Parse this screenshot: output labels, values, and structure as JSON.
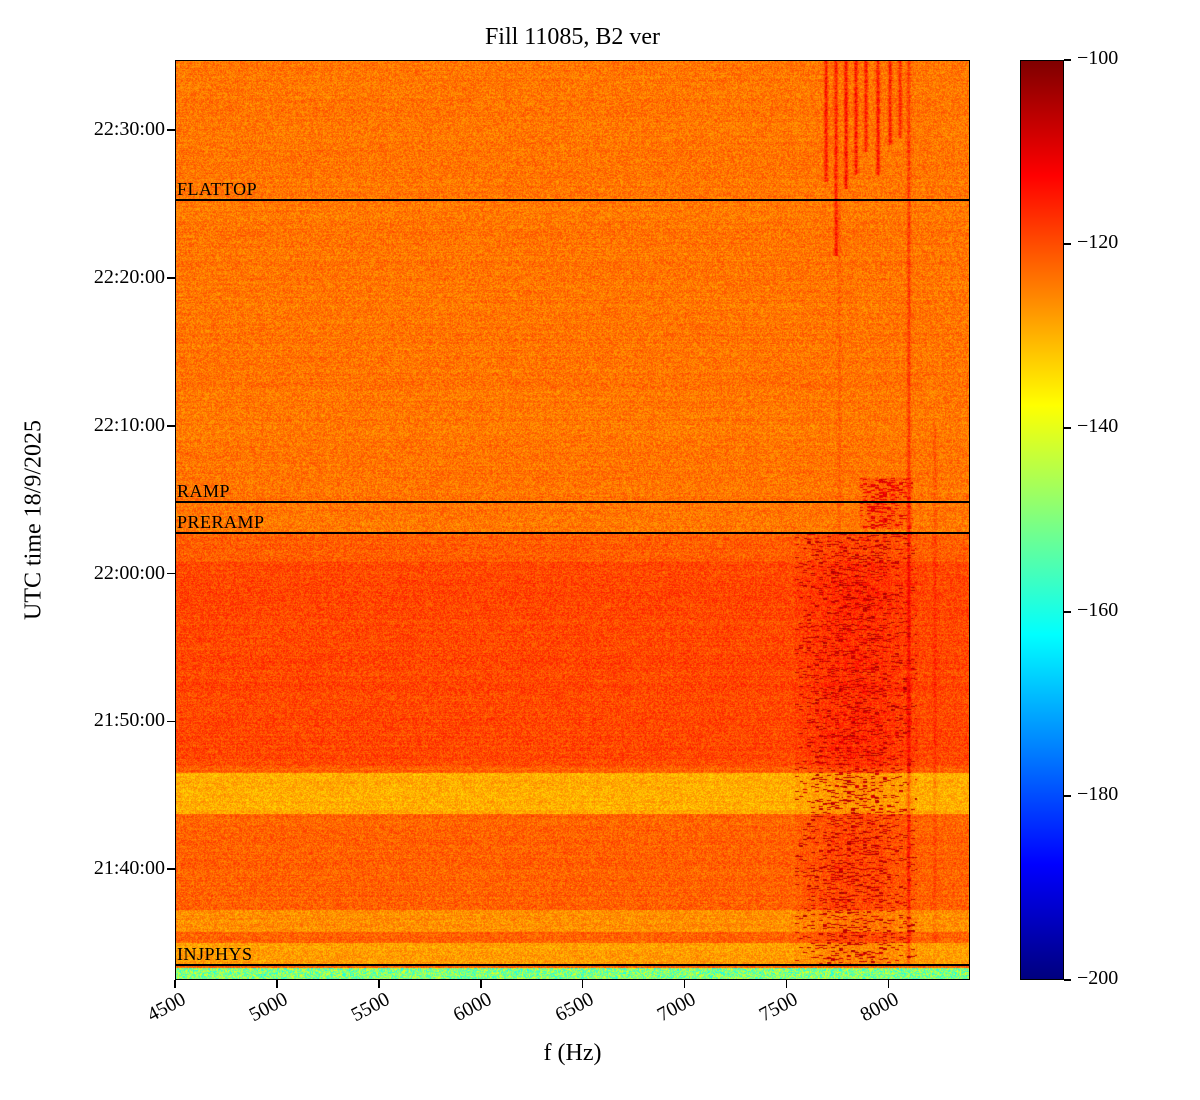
{
  "chart_data": {
    "type": "heatmap",
    "variant": "spectrogram",
    "title": "Fill 11085, B2 ver",
    "xlabel": "f (Hz)",
    "ylabel": "UTC time 18/9/2025",
    "x_range_hz": [
      4500,
      8400
    ],
    "x_ticks_hz": [
      4500,
      5000,
      5500,
      6000,
      6500,
      7000,
      7500,
      8000
    ],
    "time_start": "21:32:30",
    "time_end": "22:34:45",
    "y_ticks_time": [
      "22:30:00",
      "22:20:00",
      "22:10:00",
      "22:00:00",
      "21:50:00",
      "21:40:00"
    ],
    "colorbar": {
      "colormap": "jet",
      "min_db": -200,
      "max_db": -100,
      "ticks_db": [
        -100,
        -120,
        -140,
        -160,
        -180,
        -200
      ],
      "tick_labels": [
        "−100",
        "−120",
        "−140",
        "−160",
        "−180",
        "−200"
      ]
    },
    "annotations": [
      {
        "label": "FLATTOP",
        "time": "22:25:15"
      },
      {
        "label": "RAMP",
        "time": "22:04:50"
      },
      {
        "label": "PRERAMP",
        "time": "22:02:45"
      },
      {
        "label": "INJPHYS",
        "time": "21:33:30"
      }
    ],
    "noise_db": 4.5,
    "region_levels": [
      {
        "t0": "21:33:20",
        "t1": "21:47:00",
        "mean_db": -122
      },
      {
        "t0": "21:47:00",
        "t1": "22:02:45",
        "mean_db": -119.5
      },
      {
        "t0": "22:02:45",
        "t1": "22:34:45",
        "mean_db": -124
      }
    ],
    "light_bands": [
      {
        "t0": "21:43:45",
        "t1": "21:46:30",
        "delta_db": -7.5
      },
      {
        "t0": "21:35:45",
        "t1": "21:37:15",
        "delta_db": -4.5
      },
      {
        "t0": "21:33:30",
        "t1": "21:35:00",
        "delta_db": -6
      },
      {
        "t0": "22:00:45",
        "t1": "22:02:45",
        "delta_db": -2
      }
    ],
    "injection_band": {
      "t0": "21:32:30",
      "t1": "21:33:20",
      "mean_db": -150,
      "noise_db": 12
    },
    "speckle_regions": [
      {
        "f0_hz": 7540,
        "f1_hz": 8140,
        "fc_hz": 7840,
        "sigma_hz": 175,
        "t0": "21:33:30",
        "t1": "22:02:45",
        "density": 0.15,
        "peak_db": -102
      },
      {
        "f0_hz": 7860,
        "f1_hz": 8120,
        "fc_hz": 7990,
        "sigma_hz": 120,
        "t0": "22:03:00",
        "t1": "22:06:30",
        "density": 0.18,
        "peak_db": -106
      }
    ],
    "vertical_lines": [
      {
        "f_hz": 7694,
        "t0": "22:26:30",
        "t1": "22:34:45",
        "delta_db": 13
      },
      {
        "f_hz": 7743,
        "t0": "22:21:30",
        "t1": "22:34:45",
        "delta_db": 12
      },
      {
        "f_hz": 7792,
        "t0": "22:26:00",
        "t1": "22:34:45",
        "delta_db": 14
      },
      {
        "f_hz": 7841,
        "t0": "22:27:00",
        "t1": "22:34:45",
        "delta_db": 13
      },
      {
        "f_hz": 7890,
        "t0": "22:28:30",
        "t1": "22:34:45",
        "delta_db": 12
      },
      {
        "f_hz": 7949,
        "t0": "22:27:00",
        "t1": "22:34:45",
        "delta_db": 13
      },
      {
        "f_hz": 8008,
        "t0": "22:29:00",
        "t1": "22:34:45",
        "delta_db": 12
      },
      {
        "f_hz": 8057,
        "t0": "22:29:30",
        "t1": "22:34:45",
        "delta_db": 10
      },
      {
        "f_hz": 8100,
        "t0": "21:33:30",
        "t1": "22:34:45",
        "delta_db": 8
      },
      {
        "f_hz": 8228,
        "t0": "21:35:00",
        "t1": "22:10:00",
        "delta_db": 4
      },
      {
        "f_hz": 7760,
        "t0": "22:02:45",
        "t1": "22:25:15",
        "delta_db": 3
      }
    ]
  }
}
